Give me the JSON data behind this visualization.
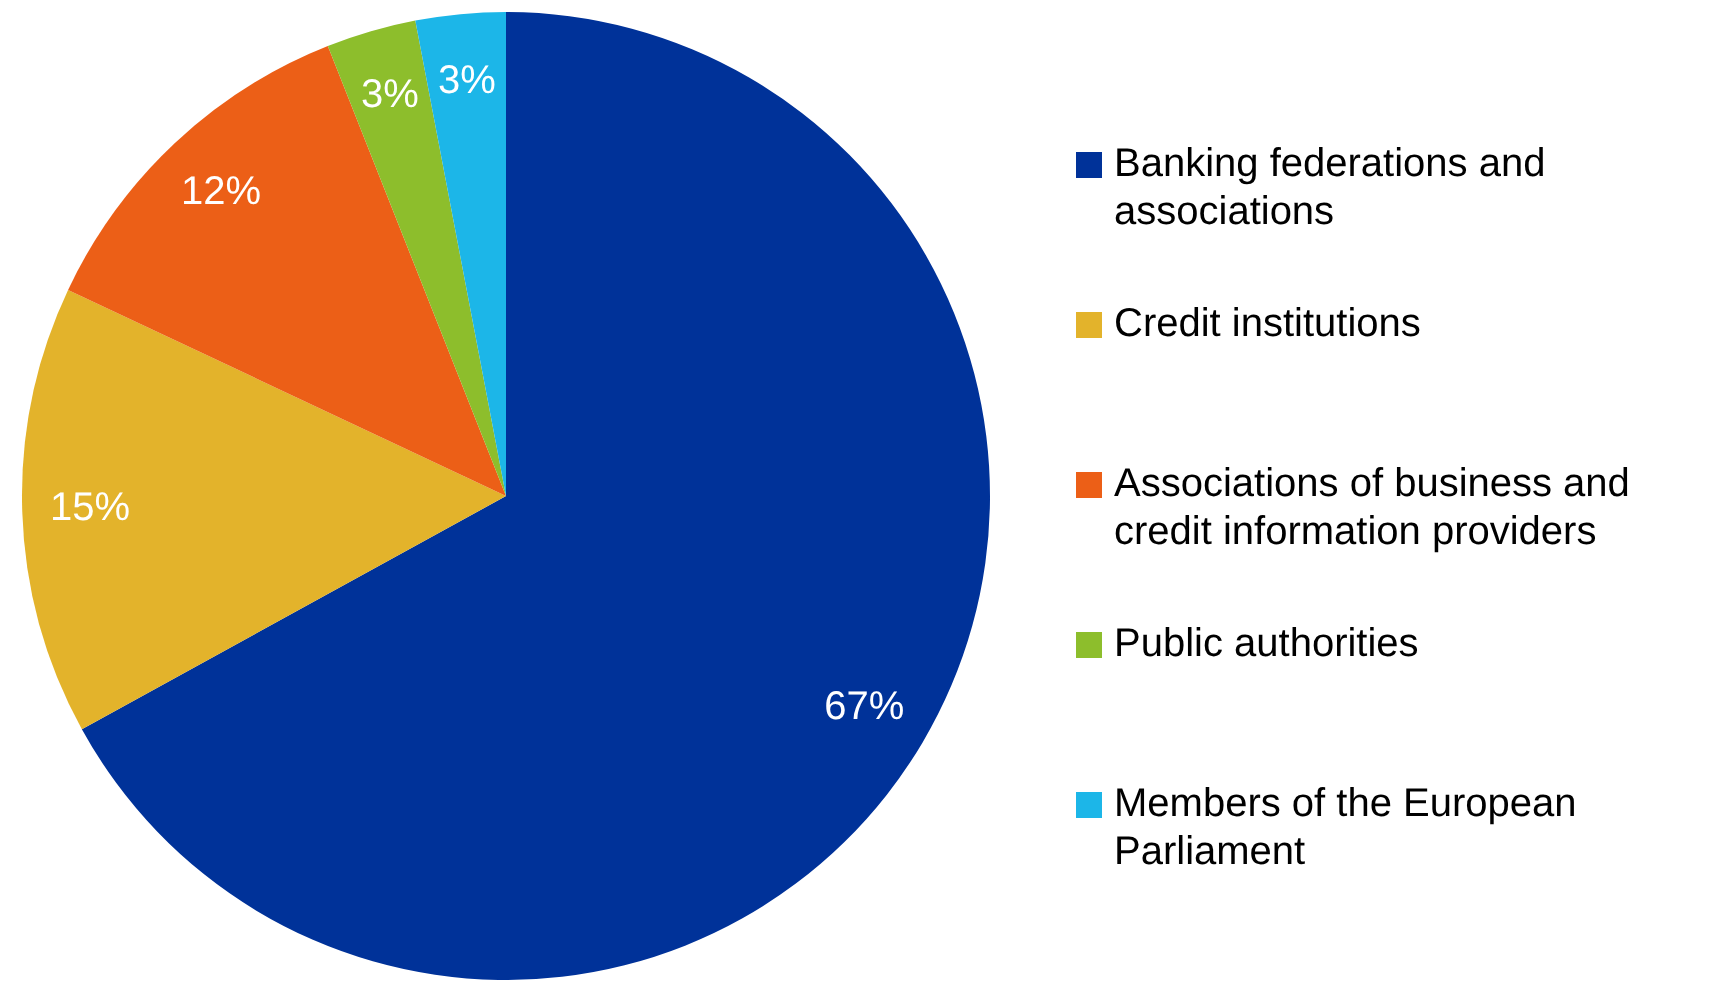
{
  "chart_data": {
    "type": "pie",
    "categories": [
      "Banking federations and associations",
      "Credit institutions",
      "Associations of business and credit information providers",
      "Public authorities",
      "Members of the European Parliament"
    ],
    "values": [
      67,
      15,
      12,
      3,
      3
    ],
    "colors": [
      "#003299",
      "#e3b32b",
      "#ec5f17",
      "#8dbe2c",
      "#1cb6e8"
    ],
    "value_labels": [
      "67%",
      "15%",
      "12%",
      "3%",
      "3%"
    ],
    "legend": "right"
  }
}
